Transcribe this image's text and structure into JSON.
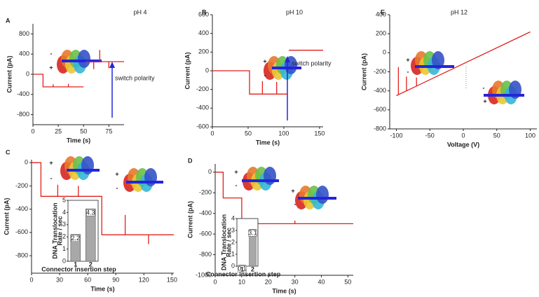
{
  "headers": [
    "pH 4",
    "pH 10",
    "pH 12"
  ],
  "chart_data": [
    {
      "type": "line",
      "panel": "A",
      "xlabel": "Time (s)",
      "ylabel": "Current (pA)",
      "xlim": [
        0,
        90
      ],
      "ylim": [
        -1000,
        1000
      ],
      "xticks": [
        0,
        25,
        50,
        75
      ],
      "yticks": [
        800,
        400,
        0,
        -400,
        -800
      ],
      "annotations": [
        "-",
        "+",
        "switch polarity"
      ],
      "series": [
        {
          "color": "#e0201c",
          "x": [
            0,
            10,
            10,
            20,
            20,
            20,
            35,
            35,
            35,
            50,
            50,
            52,
            60,
            60,
            60,
            66,
            66,
            66,
            75,
            75,
            75,
            90
          ],
          "values": [
            0,
            0,
            -250,
            -250,
            -200,
            -250,
            -250,
            -190,
            -250,
            -250,
            null,
            250,
            250,
            100,
            250,
            250,
            480,
            250,
            250,
            120,
            250,
            250
          ]
        }
      ]
    },
    {
      "type": "line",
      "panel": "B",
      "xlabel": "Time (s)",
      "ylabel": "Current (pA)",
      "xlim": [
        0,
        155
      ],
      "ylim": [
        -600,
        600
      ],
      "xticks": [
        0,
        50,
        100,
        150
      ],
      "yticks": [
        600,
        400,
        200,
        0,
        -200,
        -400,
        -600
      ],
      "annotations": [
        "+",
        "-",
        "switch polarity"
      ],
      "series": [
        {
          "color": "#e0201c",
          "x": [
            0,
            52,
            52,
            70,
            70,
            70,
            90,
            90,
            90,
            105,
            105,
            107,
            155
          ],
          "values": [
            0,
            0,
            -250,
            -250,
            -110,
            -250,
            -250,
            -120,
            -250,
            -250,
            null,
            220,
            220
          ]
        }
      ]
    },
    {
      "type": "line",
      "panel": "E",
      "xlabel": "Voltage (V)",
      "ylabel": "Current (pA)",
      "xlim": [
        -110,
        110
      ],
      "ylim": [
        -800,
        400
      ],
      "xticks": [
        -100,
        -50,
        0,
        50,
        100
      ],
      "yticks": [
        400,
        200,
        0,
        -200,
        -400,
        -600,
        -800
      ],
      "annotations": [
        "+",
        "-",
        "-",
        "+"
      ],
      "series": [
        {
          "color": "#e0201c",
          "x": [
            -100,
            -97,
            -97,
            -97,
            -85,
            -85,
            -85,
            -70,
            -70,
            -70,
            100
          ],
          "values": [
            -450,
            -440,
            -150,
            -440,
            -400,
            -250,
            -400,
            -350,
            -260,
            -350,
            220
          ]
        }
      ]
    },
    {
      "type": "line",
      "panel": "C",
      "xlabel": "Time (s)",
      "ylabel": "Current (pA)",
      "xlim": [
        0,
        152
      ],
      "ylim": [
        -950,
        25
      ],
      "xticks": [
        0,
        30,
        60,
        90,
        120,
        150
      ],
      "yticks": [
        0,
        -200,
        -400,
        -600,
        -800
      ],
      "annotations": [
        "+",
        "-",
        "+",
        "-"
      ],
      "series": [
        {
          "color": "#e0201c",
          "x": [
            0,
            10,
            10,
            28,
            28,
            28,
            50,
            50,
            50,
            75,
            75,
            100,
            100,
            100,
            125,
            125,
            125,
            152
          ],
          "values": [
            0,
            0,
            -290,
            -290,
            -190,
            -290,
            -290,
            -200,
            -290,
            -290,
            -620,
            -620,
            -450,
            -620,
            -620,
            -700,
            -620,
            -620
          ]
        }
      ]
    },
    {
      "type": "line",
      "panel": "D",
      "xlabel": "Time (s)",
      "ylabel": "Current (pA)",
      "xlim": [
        0,
        52
      ],
      "ylim": [
        -1000,
        80
      ],
      "xticks": [
        0,
        10,
        20,
        30,
        40,
        50
      ],
      "yticks": [
        0,
        -200,
        -400,
        -600,
        -800,
        -1000
      ],
      "annotations": [
        "+",
        "-",
        "+",
        "-"
      ],
      "series": [
        {
          "color": "#e0201c",
          "x": [
            0,
            3,
            3,
            10,
            10,
            30,
            30,
            30,
            52
          ],
          "values": [
            0,
            0,
            -250,
            -250,
            -500,
            -500,
            -470,
            -500,
            -500
          ]
        }
      ]
    },
    {
      "type": "bar",
      "xlabel": "Connector insertion step",
      "ylabel": [
        "DNA Translocation",
        "Rate / sec"
      ],
      "categories": [
        "1",
        "2"
      ],
      "values": [
        2.2,
        4.3
      ],
      "color": "#a8a8a8",
      "ylim": [
        0,
        5
      ],
      "yticks": [
        0,
        1,
        2,
        3,
        4,
        5
      ]
    },
    {
      "type": "bar",
      "xlabel": "Connector insertion step",
      "ylabel": [
        "DNA Translocation",
        "Rate / sec"
      ],
      "categories": [
        "1",
        "2"
      ],
      "values": [
        0.1,
        3.1
      ],
      "color": "#a8a8a8",
      "ylim": [
        0,
        4
      ],
      "yticks": [
        0,
        1,
        2,
        3,
        4
      ]
    }
  ]
}
